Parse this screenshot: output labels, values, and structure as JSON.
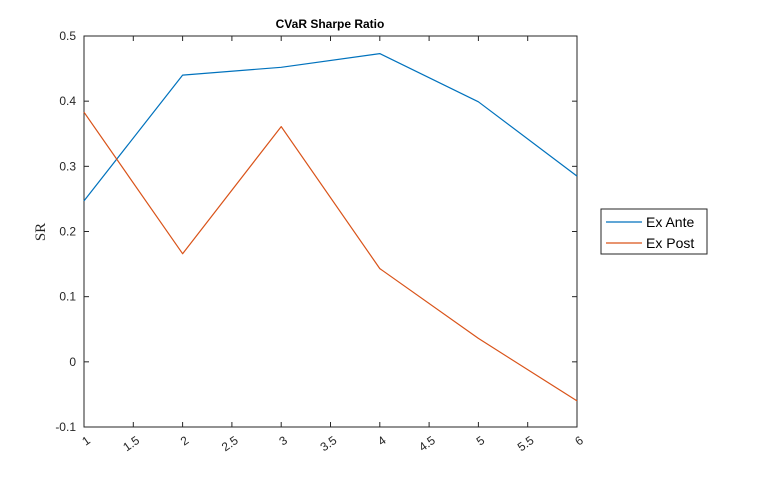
{
  "chart_data": {
    "type": "line",
    "title": "CVaR Sharpe Ratio",
    "xlabel": "",
    "ylabel": "SR",
    "xlim": [
      1,
      6
    ],
    "ylim": [
      -0.1,
      0.5
    ],
    "xticks": [
      1,
      1.5,
      2,
      2.5,
      3,
      3.5,
      4,
      4.5,
      5,
      5.5,
      6
    ],
    "xtick_labels": [
      "1",
      "1.5",
      "2",
      "2.5",
      "3",
      "3.5",
      "4",
      "4.5",
      "5",
      "5.5",
      "6"
    ],
    "yticks": [
      -0.1,
      0,
      0.1,
      0.2,
      0.3,
      0.4,
      0.5
    ],
    "ytick_labels": [
      "-0.1",
      "0",
      "0.1",
      "0.2",
      "0.3",
      "0.4",
      "0.5"
    ],
    "x": [
      1,
      2,
      3,
      4,
      5,
      6
    ],
    "series": [
      {
        "name": "Ex Ante",
        "color": "#0072BD",
        "values": [
          0.247,
          0.44,
          0.452,
          0.473,
          0.399,
          0.285
        ]
      },
      {
        "name": "Ex Post",
        "color": "#D95319",
        "values": [
          0.383,
          0.166,
          0.361,
          0.143,
          0.036,
          -0.06
        ]
      }
    ],
    "grid": false,
    "legend_position": "outside-right"
  }
}
